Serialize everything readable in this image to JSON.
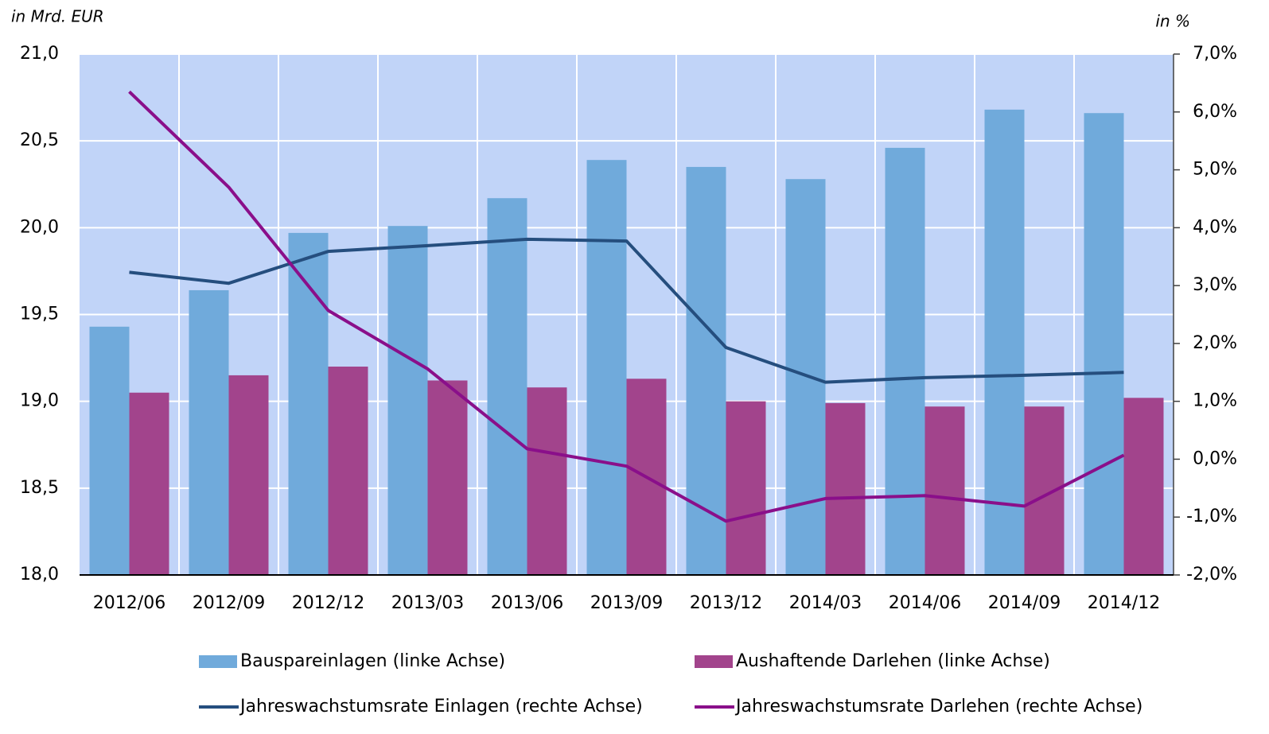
{
  "chart_data": {
    "type": "bar",
    "ylabel": "in Mrd. EUR",
    "y2label": "in %",
    "categories": [
      "2012/06",
      "2012/09",
      "2012/12",
      "2013/03",
      "2013/06",
      "2013/09",
      "2013/12",
      "2014/03",
      "2014/06",
      "2014/09",
      "2014/12"
    ],
    "series": [
      {
        "name": "Bauspareinlagen (linke Achse)",
        "type": "bar",
        "color": "#70aadb",
        "values": [
          19.43,
          19.64,
          19.97,
          20.01,
          20.17,
          20.39,
          20.35,
          20.28,
          20.46,
          20.68,
          20.66
        ]
      },
      {
        "name": "Aushaftende Darlehen (linke Achse)",
        "type": "bar",
        "color": "#a2448c",
        "values": [
          19.05,
          19.15,
          19.2,
          19.12,
          19.08,
          19.13,
          19.0,
          18.99,
          18.97,
          18.97,
          19.02
        ]
      },
      {
        "name": "Jahreswachstumsrate Einlagen (rechte Achse)",
        "type": "line",
        "axis": "y2",
        "color": "#254e7e",
        "values": [
          3.23,
          3.04,
          3.59,
          3.69,
          3.8,
          3.77,
          1.93,
          1.33,
          1.41,
          1.45,
          1.5
        ]
      },
      {
        "name": "Jahreswachstumsrate Darlehen  (rechte Achse)",
        "type": "line",
        "axis": "y2",
        "color": "#8a0f8a",
        "values": [
          6.35,
          4.7,
          2.57,
          1.56,
          0.18,
          -0.12,
          -1.07,
          -0.68,
          -0.63,
          -0.81,
          0.07
        ]
      }
    ],
    "ylim": [
      18,
      21
    ],
    "yticks": [
      {
        "value": 18,
        "label": "18,0"
      },
      {
        "value": 18.5,
        "label": "18,5"
      },
      {
        "value": 19,
        "label": "19,0"
      },
      {
        "value": 19.5,
        "label": "19,5"
      },
      {
        "value": 20,
        "label": "20,0"
      },
      {
        "value": 20.5,
        "label": "20,5"
      },
      {
        "value": 21,
        "label": "21,0"
      }
    ],
    "y2lim": [
      -2,
      7
    ],
    "y2ticks": [
      {
        "value": -2,
        "label": "-2,0%"
      },
      {
        "value": -1,
        "label": "-1,0%"
      },
      {
        "value": 0,
        "label": "0,0%"
      },
      {
        "value": 1,
        "label": "1,0%"
      },
      {
        "value": 2,
        "label": "2,0%"
      },
      {
        "value": 3,
        "label": "3,0%"
      },
      {
        "value": 4,
        "label": "4,0%"
      },
      {
        "value": 5,
        "label": "5,0%"
      },
      {
        "value": 6,
        "label": "6,0%"
      },
      {
        "value": 7,
        "label": "7,0%"
      }
    ],
    "grid": true,
    "legend": "bottom"
  }
}
